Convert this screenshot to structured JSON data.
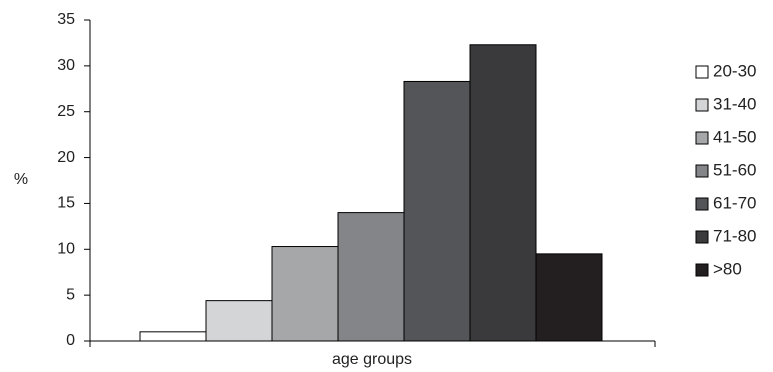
{
  "chart_data": {
    "type": "bar",
    "title": "",
    "xlabel": "age groups",
    "ylabel": "%",
    "ylim": [
      0,
      35
    ],
    "yticks": [
      0,
      5,
      10,
      15,
      20,
      25,
      30,
      35
    ],
    "grid": false,
    "legend_position": "right",
    "series": [
      {
        "name": "20-30",
        "value": 1.0,
        "color": "#ffffff"
      },
      {
        "name": "31-40",
        "value": 4.4,
        "color": "#d4d5d6"
      },
      {
        "name": "41-50",
        "value": 10.3,
        "color": "#a6a7a9"
      },
      {
        "name": "51-60",
        "value": 14.0,
        "color": "#848588"
      },
      {
        "name": "61-70",
        "value": 28.3,
        "color": "#545558"
      },
      {
        "name": "71-80",
        "value": 32.3,
        "color": "#3a3a3c"
      },
      {
        "name": ">80",
        "value": 9.5,
        "color": "#231f20"
      }
    ]
  }
}
